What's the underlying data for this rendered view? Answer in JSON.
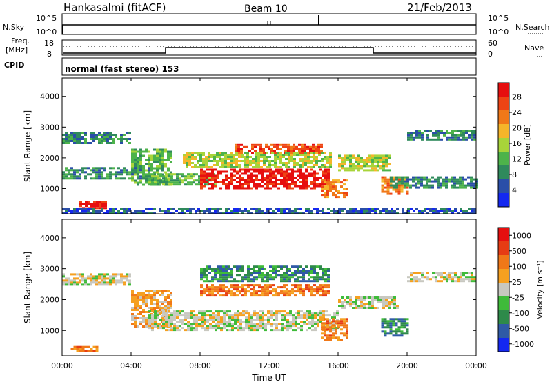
{
  "header": {
    "station": "Hankasalmi (fitACF)",
    "beam": "Beam 10",
    "date": "21/Feb/2013"
  },
  "panels": {
    "nsky_label": "N.Sky",
    "nsearch_label": "N.Search",
    "top_ticks_left": [
      "10^5",
      "10^0"
    ],
    "top_ticks_right": [
      "10^5",
      "10^0"
    ],
    "freq_label_1": "Freq.",
    "freq_label_2": "[MHz]",
    "freq_ticks": [
      "18",
      "8"
    ],
    "nave_label": "Nave",
    "nave_ticks": [
      "60",
      "0"
    ],
    "cpid_label": "CPID",
    "cpid_value": "normal (fast stereo) 153"
  },
  "colors": {
    "power": [
      "#1428f0",
      "#2a4ea8",
      "#2f8a5c",
      "#4db34a",
      "#a8d43a",
      "#f5b52a",
      "#f07818",
      "#ee4414",
      "#e60f0f"
    ],
    "velocity": [
      "#1428f0",
      "#2f5aa6",
      "#2e8a4a",
      "#3fbb3a",
      "#c8c8c0",
      "#f5a020",
      "#f07818",
      "#e63c14",
      "#e60f0f"
    ]
  },
  "chart_data": [
    {
      "type": "heatmap",
      "quantity": "Power",
      "ylabel": "Slant Range [km]",
      "xlabel": "",
      "ylim": [
        180,
        4600
      ],
      "xlim": [
        0,
        24
      ],
      "yticks": [
        "1000",
        "2000",
        "3000",
        "4000"
      ],
      "colorbar_label": "Power [dB]",
      "colorbar_ticks": [
        "4",
        "8",
        "12",
        "16",
        "20",
        "24",
        "28"
      ],
      "regions": [
        {
          "t0": 0.0,
          "t1": 4.0,
          "r0": 2500,
          "r1": 2850,
          "level": 2
        },
        {
          "t0": 4.0,
          "t1": 6.3,
          "r0": 1100,
          "r1": 2300,
          "level": 3
        },
        {
          "t0": 0.0,
          "t1": 5.0,
          "r0": 1350,
          "r1": 1700,
          "level": 2
        },
        {
          "t0": 5.0,
          "t1": 9.0,
          "r0": 1150,
          "r1": 1500,
          "level": 3
        },
        {
          "t0": 8.0,
          "t1": 15.5,
          "r0": 1000,
          "r1": 1650,
          "level": 8
        },
        {
          "t0": 10.0,
          "t1": 15.0,
          "r0": 2150,
          "r1": 2450,
          "level": 7
        },
        {
          "t0": 7.0,
          "t1": 15.5,
          "r0": 1700,
          "r1": 2200,
          "level": 4
        },
        {
          "t0": 15.0,
          "t1": 16.5,
          "r0": 700,
          "r1": 1300,
          "level": 6
        },
        {
          "t0": 16.0,
          "t1": 19.0,
          "r0": 1600,
          "r1": 2100,
          "level": 4
        },
        {
          "t0": 18.5,
          "t1": 20.0,
          "r0": 800,
          "r1": 1400,
          "level": 6
        },
        {
          "t0": 19.0,
          "t1": 24.0,
          "r0": 1000,
          "r1": 1400,
          "level": 2
        },
        {
          "t0": 20.0,
          "t1": 24.0,
          "r0": 2600,
          "r1": 2900,
          "level": 2
        },
        {
          "t0": 1.0,
          "t1": 2.5,
          "r0": 350,
          "r1": 600,
          "level": 8
        },
        {
          "t0": 0.0,
          "t1": 24.0,
          "r0": 200,
          "r1": 380,
          "level": 1
        }
      ]
    },
    {
      "type": "heatmap",
      "quantity": "Velocity",
      "ylabel": "Slant Range [km]",
      "xlabel": "Time UT",
      "ylim": [
        180,
        4600
      ],
      "xlim": [
        0,
        24
      ],
      "yticks": [
        "1000",
        "2000",
        "3000",
        "4000"
      ],
      "xticks": [
        "00:00",
        "04:00",
        "08:00",
        "12:00",
        "16:00",
        "20:00",
        "00:00"
      ],
      "colorbar_label": "Velocity [m s⁻¹]",
      "colorbar_ticks": [
        "1000",
        "500",
        "100",
        "25",
        "-25",
        "-100",
        "-500",
        "-1000"
      ],
      "regions": [
        {
          "t0": 0.0,
          "t1": 4.0,
          "r0": 2500,
          "r1": 2850,
          "level": 4
        },
        {
          "t0": 4.0,
          "t1": 6.3,
          "r0": 1100,
          "r1": 2300,
          "level": 5
        },
        {
          "t0": 5.0,
          "t1": 16.0,
          "r0": 1000,
          "r1": 1650,
          "level": 4
        },
        {
          "t0": 8.0,
          "t1": 15.5,
          "r0": 2150,
          "r1": 2500,
          "level": 6
        },
        {
          "t0": 8.0,
          "t1": 15.5,
          "r0": 2600,
          "r1": 3100,
          "level": 2
        },
        {
          "t0": 15.0,
          "t1": 16.5,
          "r0": 700,
          "r1": 1400,
          "level": 6
        },
        {
          "t0": 16.0,
          "t1": 19.5,
          "r0": 1700,
          "r1": 2100,
          "level": 4
        },
        {
          "t0": 18.5,
          "t1": 20.0,
          "r0": 800,
          "r1": 1400,
          "level": 2
        },
        {
          "t0": 20.0,
          "t1": 24.0,
          "r0": 2600,
          "r1": 2900,
          "level": 4
        },
        {
          "t0": 0.5,
          "t1": 2.0,
          "r0": 300,
          "r1": 500,
          "level": 6
        }
      ]
    }
  ]
}
